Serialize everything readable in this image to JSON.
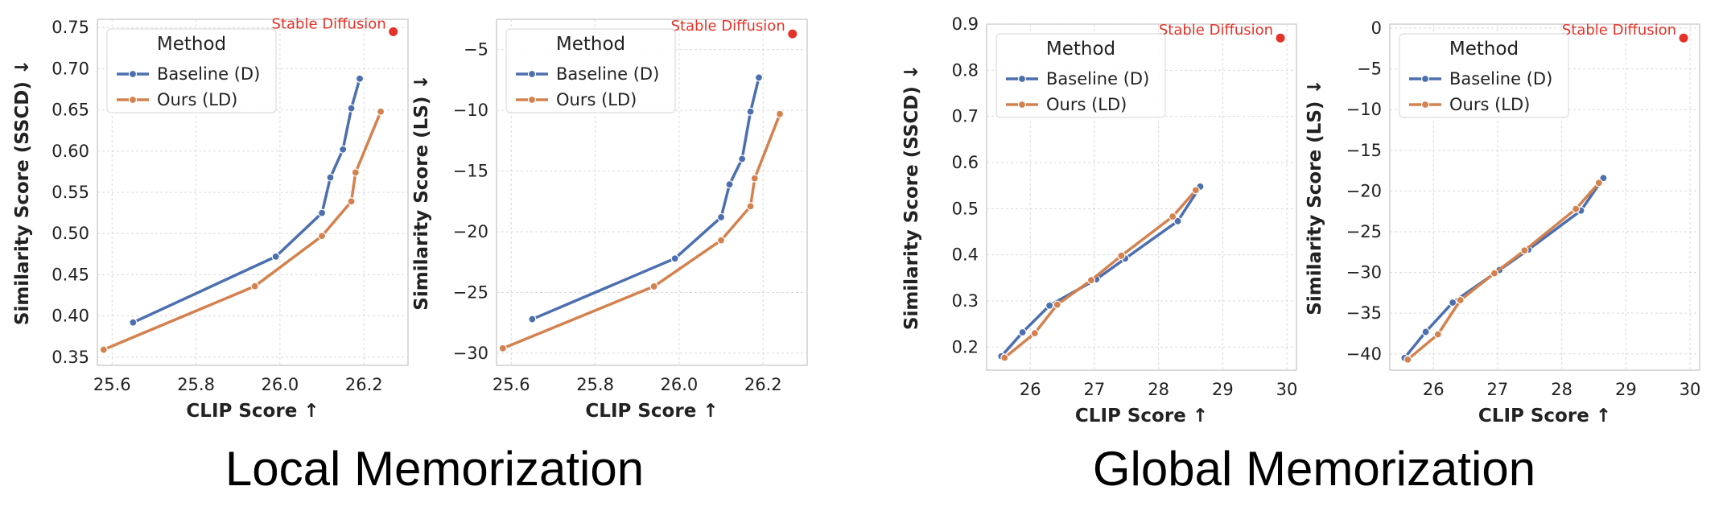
{
  "captions": {
    "local": "Local Memorization",
    "global": "Global Memorization"
  },
  "colors": {
    "baseline": "#4c6faf",
    "ours": "#d3824f",
    "reference": "#e53228",
    "grid": "#d9d9d9",
    "frame": "#cfcfcf"
  },
  "chart_data": [
    {
      "type": "line",
      "xlabel": "CLIP Score ↑",
      "ylabel": "Similarity Score (SSCD) ↓",
      "xlim": [
        25.565,
        26.305
      ],
      "ylim": [
        0.34,
        0.76
      ],
      "xticks": [
        25.6,
        25.8,
        26.0,
        26.2
      ],
      "xtick_labels": [
        "25.6",
        "25.8",
        "26.0",
        "26.2"
      ],
      "yticks": [
        0.35,
        0.4,
        0.45,
        0.5,
        0.55,
        0.6,
        0.65,
        0.7,
        0.75
      ],
      "ytick_labels": [
        "0.35",
        "0.40",
        "0.45",
        "0.50",
        "0.55",
        "0.60",
        "0.65",
        "0.70",
        "0.75"
      ],
      "grid": true,
      "legend": {
        "title": "Method",
        "placement": "upper-left"
      },
      "series": [
        {
          "name": "Baseline (D)",
          "x": [
            25.65,
            25.99,
            26.1,
            26.12,
            26.15,
            26.17,
            26.19
          ],
          "y": [
            0.392,
            0.472,
            0.525,
            0.568,
            0.602,
            0.652,
            0.688
          ]
        },
        {
          "name": "Ours (LD)",
          "x": [
            25.58,
            25.94,
            26.1,
            26.17,
            26.18,
            26.24
          ],
          "y": [
            0.359,
            0.436,
            0.497,
            0.539,
            0.574,
            0.648
          ]
        }
      ],
      "reference": {
        "label": "Stable Diffusion",
        "x": 26.27,
        "y": 0.745
      }
    },
    {
      "type": "line",
      "xlabel": "CLIP Score ↑",
      "ylabel": "Similarity Score (LS) ↓",
      "xlim": [
        25.565,
        26.305
      ],
      "ylim": [
        -31.0,
        -2.5
      ],
      "xticks": [
        25.6,
        25.8,
        26.0,
        26.2
      ],
      "xtick_labels": [
        "25.6",
        "25.8",
        "26.0",
        "26.2"
      ],
      "yticks": [
        -30,
        -25,
        -20,
        -15,
        -10,
        -5
      ],
      "ytick_labels": [
        "−30",
        "−25",
        "−20",
        "−15",
        "−10",
        "−5"
      ],
      "grid": true,
      "legend": {
        "title": "Method",
        "placement": "upper-left"
      },
      "series": [
        {
          "name": "Baseline (D)",
          "x": [
            25.65,
            25.99,
            26.1,
            26.12,
            26.15,
            26.17,
            26.19
          ],
          "y": [
            -27.2,
            -22.2,
            -18.8,
            -16.1,
            -14.0,
            -10.1,
            -7.3
          ]
        },
        {
          "name": "Ours (LD)",
          "x": [
            25.58,
            25.94,
            26.1,
            26.17,
            26.18,
            26.24
          ],
          "y": [
            -29.6,
            -24.5,
            -20.7,
            -17.9,
            -15.6,
            -10.3
          ]
        }
      ],
      "reference": {
        "label": "Stable Diffusion",
        "x": 26.27,
        "y": -3.7
      }
    },
    {
      "type": "line",
      "xlabel": "CLIP Score ↑",
      "ylabel": "Similarity Score (SSCD) ↓",
      "xlim": [
        25.32,
        30.15
      ],
      "ylim": [
        0.15,
        0.9
      ],
      "xticks": [
        26,
        27,
        28,
        29,
        30
      ],
      "xtick_labels": [
        "26",
        "27",
        "28",
        "29",
        "30"
      ],
      "yticks": [
        0.2,
        0.3,
        0.4,
        0.5,
        0.6,
        0.7,
        0.8,
        0.9
      ],
      "ytick_labels": [
        "0.2",
        "0.3",
        "0.4",
        "0.5",
        "0.6",
        "0.7",
        "0.8",
        "0.9"
      ],
      "grid": true,
      "legend": {
        "title": "Method",
        "placement": "upper-left"
      },
      "series": [
        {
          "name": "Baseline (D)",
          "x": [
            25.55,
            25.88,
            26.3,
            27.03,
            27.48,
            28.3,
            28.65
          ],
          "y": [
            0.18,
            0.232,
            0.29,
            0.347,
            0.392,
            0.473,
            0.548
          ]
        },
        {
          "name": "Ours (LD)",
          "x": [
            25.6,
            26.07,
            26.42,
            26.95,
            27.42,
            28.22,
            28.58
          ],
          "y": [
            0.177,
            0.23,
            0.292,
            0.345,
            0.398,
            0.483,
            0.54
          ]
        }
      ],
      "reference": {
        "label": "Stable Diffusion",
        "x": 29.9,
        "y": 0.87
      }
    },
    {
      "type": "line",
      "xlabel": "CLIP Score ↑",
      "ylabel": "Similarity Score (LS) ↓",
      "xlim": [
        25.32,
        30.15
      ],
      "ylim": [
        -42.0,
        0.5
      ],
      "xticks": [
        26,
        27,
        28,
        29,
        30
      ],
      "xtick_labels": [
        "26",
        "27",
        "28",
        "29",
        "30"
      ],
      "yticks": [
        -40,
        -35,
        -30,
        -25,
        -20,
        -15,
        -10,
        -5,
        0
      ],
      "ytick_labels": [
        "−40",
        "−35",
        "−30",
        "−25",
        "−20",
        "−15",
        "−10",
        "−5",
        "0"
      ],
      "grid": true,
      "legend": {
        "title": "Method",
        "placement": "upper-left"
      },
      "series": [
        {
          "name": "Baseline (D)",
          "x": [
            25.55,
            25.88,
            26.3,
            27.03,
            27.48,
            28.3,
            28.65
          ],
          "y": [
            -40.5,
            -37.3,
            -33.7,
            -29.7,
            -27.2,
            -22.4,
            -18.4
          ]
        },
        {
          "name": "Ours (LD)",
          "x": [
            25.6,
            26.07,
            26.42,
            26.95,
            27.42,
            28.22,
            28.58
          ],
          "y": [
            -40.7,
            -37.6,
            -33.4,
            -30.1,
            -27.3,
            -22.2,
            -19.0
          ]
        }
      ],
      "reference": {
        "label": "Stable Diffusion",
        "x": 29.9,
        "y": -1.2
      }
    }
  ]
}
